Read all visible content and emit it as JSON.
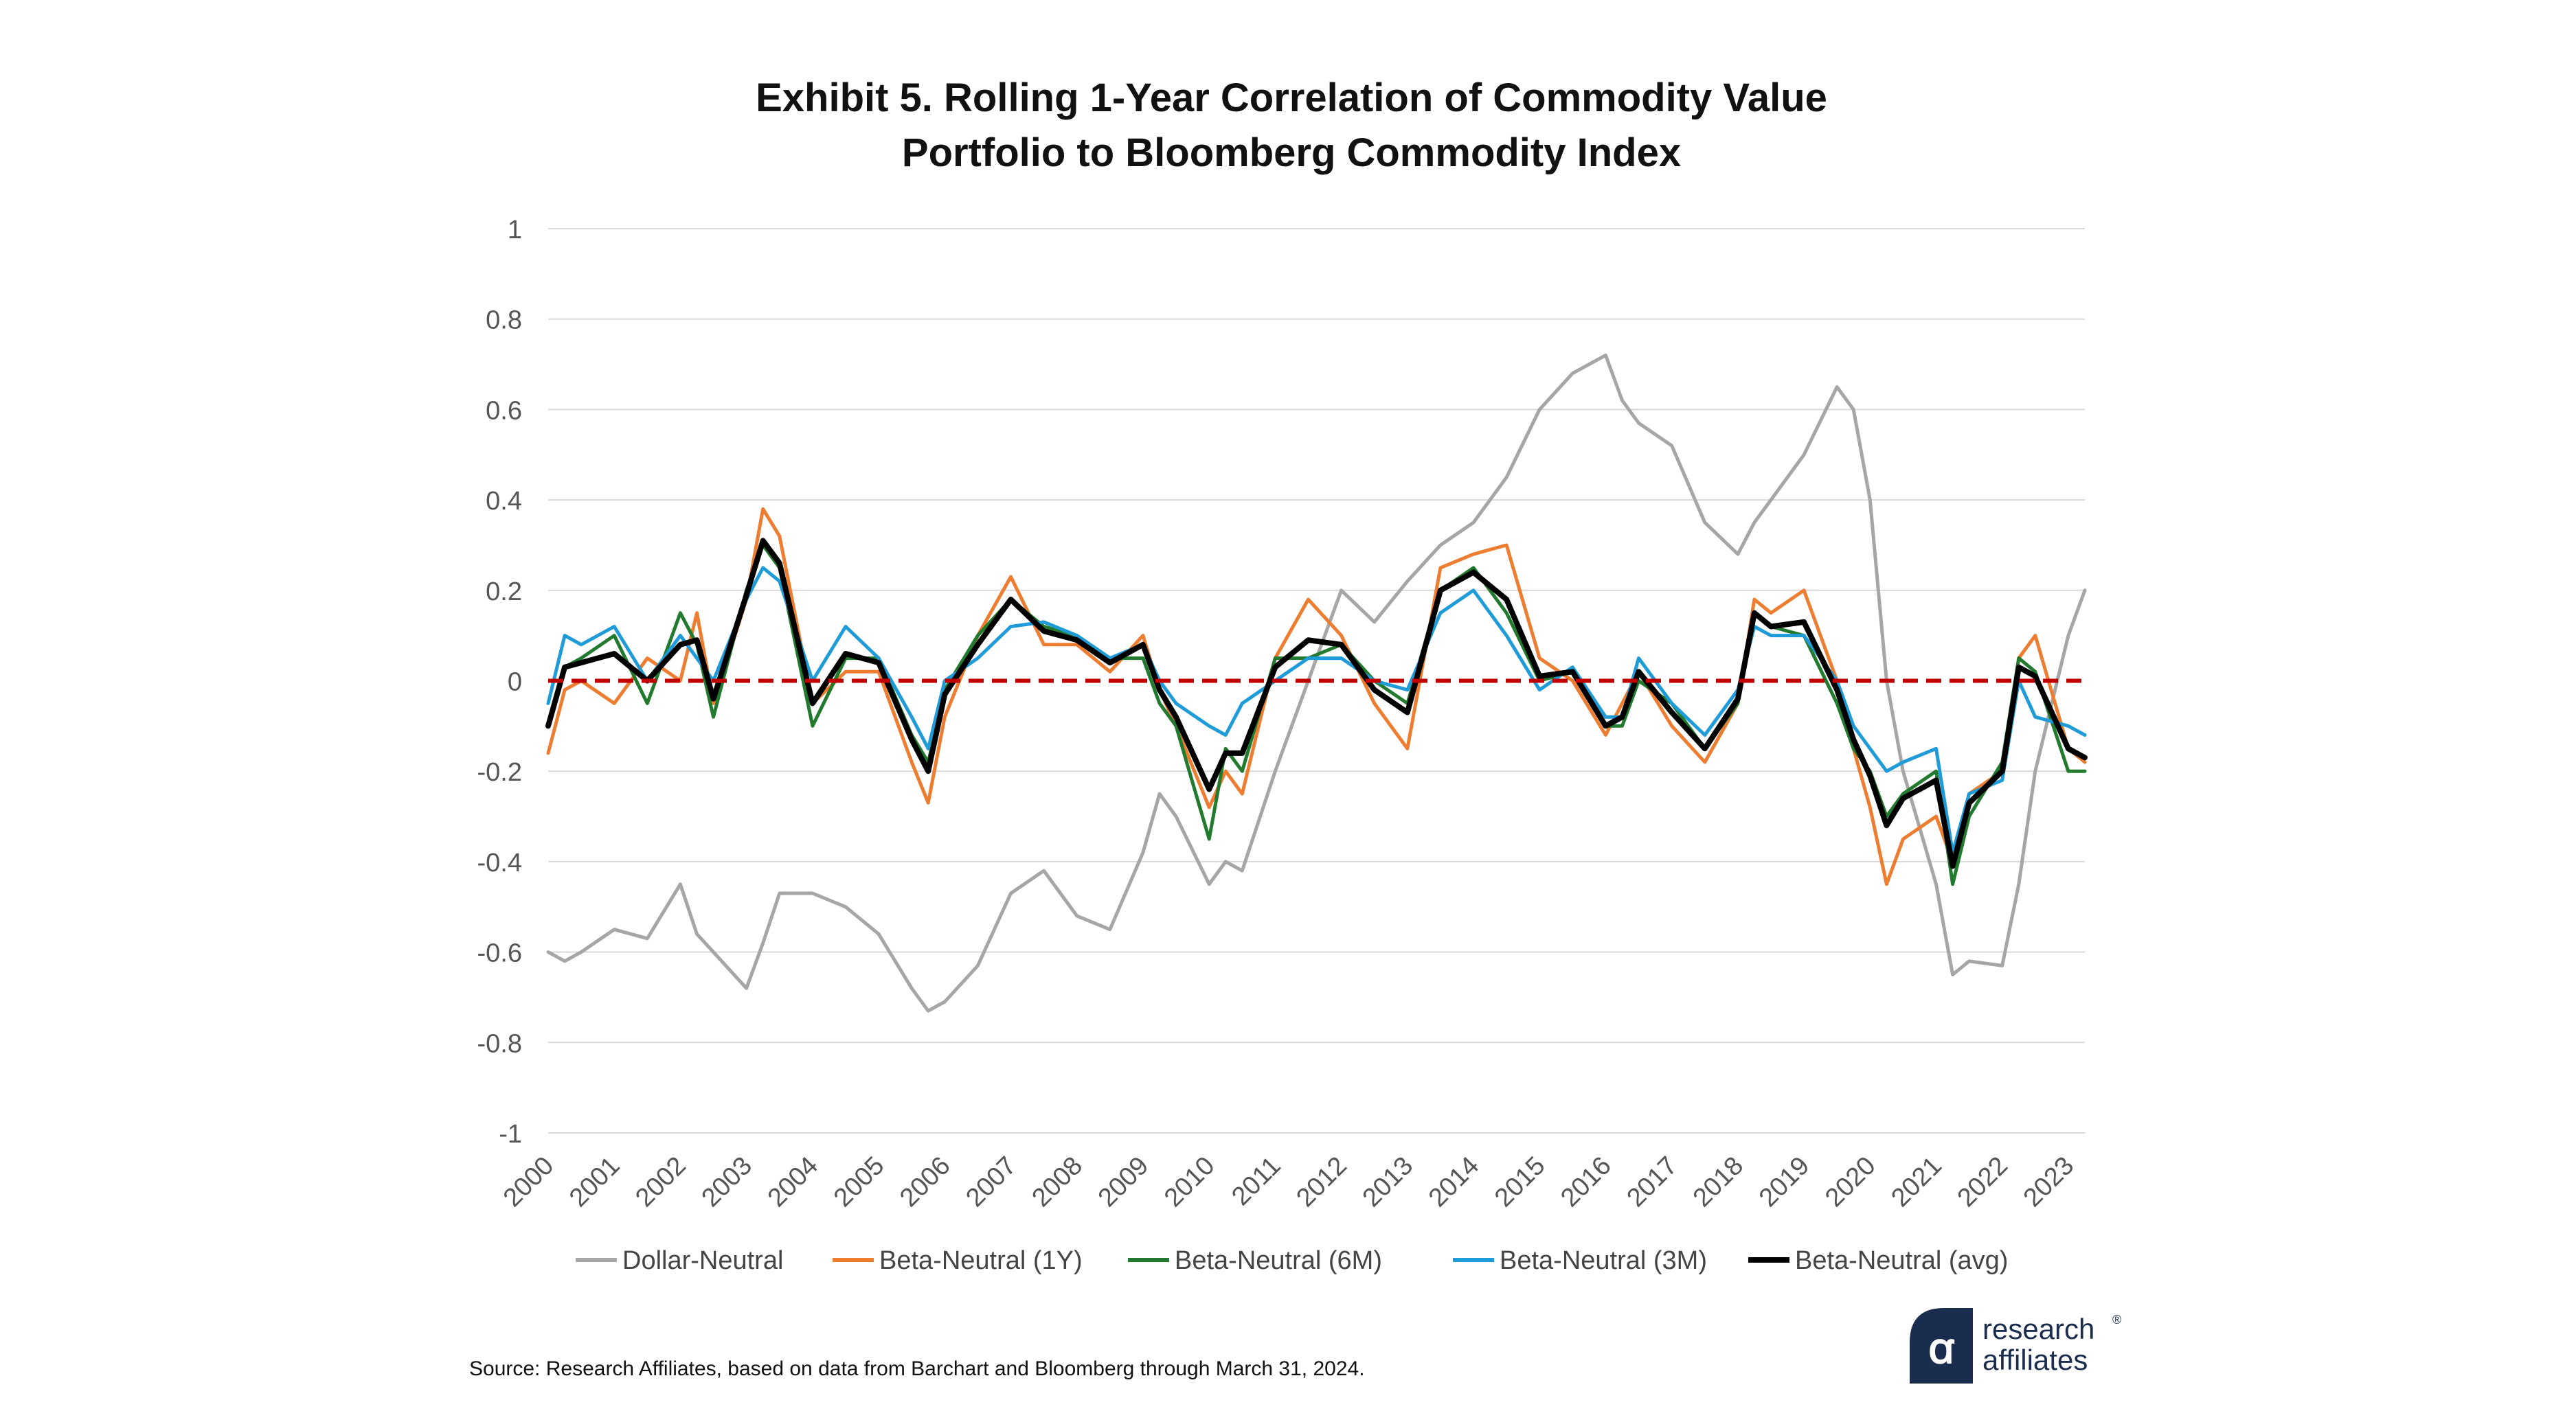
{
  "chart_data": {
    "type": "line",
    "title": "Exhibit 5. Rolling 1-Year Correlation of Commodity Value Portfolio to Bloomberg Commodity Index",
    "title_lines": [
      "Exhibit 5. Rolling 1-Year Correlation of Commodity Value",
      "Portfolio to Bloomberg Commodity Index"
    ],
    "xlabel": "",
    "ylabel": "",
    "x_range": [
      2000,
      2023.25
    ],
    "ylim": [
      -1,
      1
    ],
    "y_ticks": [
      1,
      0.8,
      0.6,
      0.4,
      0.2,
      0,
      -0.2,
      -0.4,
      -0.6,
      -0.8,
      -1
    ],
    "y_tick_labels": [
      "1",
      "0.8",
      "0.6",
      "0.4",
      "0.2",
      "0",
      "-0.2",
      "-0.4",
      "-0.6",
      "-0.8",
      "-1"
    ],
    "x_tick_labels": [
      "2000",
      "2001",
      "2002",
      "2003",
      "2004",
      "2005",
      "2006",
      "2007",
      "2008",
      "2009",
      "2010",
      "2011",
      "2012",
      "2013",
      "2014",
      "2015",
      "2016",
      "2017",
      "2018",
      "2019",
      "2020",
      "2021",
      "2022",
      "2023"
    ],
    "grid": true,
    "legend_position": "bottom",
    "reference_line": {
      "y": 0,
      "color": "#c00000",
      "style": "dashed"
    },
    "series": [
      {
        "name": "Dollar-Neutral",
        "color": "#a6a6a6",
        "x": [
          2000,
          2000.25,
          2000.5,
          2001,
          2001.5,
          2002,
          2002.25,
          2002.5,
          2003,
          2003.25,
          2003.5,
          2004,
          2004.5,
          2005,
          2005.5,
          2005.75,
          2006,
          2006.5,
          2007,
          2007.5,
          2008,
          2008.5,
          2009,
          2009.25,
          2009.5,
          2010,
          2010.25,
          2010.5,
          2011,
          2011.5,
          2012,
          2012.5,
          2013,
          2013.5,
          2014,
          2014.5,
          2015,
          2015.5,
          2016,
          2016.25,
          2016.5,
          2017,
          2017.5,
          2018,
          2018.25,
          2018.5,
          2019,
          2019.5,
          2019.75,
          2020,
          2020.25,
          2020.5,
          2021,
          2021.25,
          2021.5,
          2022,
          2022.25,
          2022.5,
          2023,
          2023.25
        ],
        "values": [
          -0.6,
          -0.62,
          -0.6,
          -0.55,
          -0.57,
          -0.45,
          -0.56,
          -0.6,
          -0.68,
          -0.58,
          -0.47,
          -0.47,
          -0.5,
          -0.56,
          -0.68,
          -0.73,
          -0.71,
          -0.63,
          -0.47,
          -0.42,
          -0.52,
          -0.55,
          -0.38,
          -0.25,
          -0.3,
          -0.45,
          -0.4,
          -0.42,
          -0.2,
          0.0,
          0.2,
          0.13,
          0.22,
          0.3,
          0.35,
          0.45,
          0.6,
          0.68,
          0.72,
          0.62,
          0.57,
          0.52,
          0.35,
          0.28,
          0.35,
          0.4,
          0.5,
          0.65,
          0.6,
          0.4,
          0.0,
          -0.2,
          -0.45,
          -0.65,
          -0.62,
          -0.63,
          -0.45,
          -0.2,
          0.1,
          0.2
        ]
      },
      {
        "name": "Beta-Neutral (1Y)",
        "color": "#ed7d31",
        "x": [
          2000,
          2000.25,
          2000.5,
          2001,
          2001.5,
          2002,
          2002.25,
          2002.5,
          2003,
          2003.25,
          2003.5,
          2004,
          2004.5,
          2005,
          2005.5,
          2005.75,
          2006,
          2006.5,
          2007,
          2007.5,
          2008,
          2008.5,
          2009,
          2009.25,
          2009.5,
          2010,
          2010.25,
          2010.5,
          2011,
          2011.5,
          2012,
          2012.5,
          2013,
          2013.5,
          2014,
          2014.5,
          2015,
          2015.5,
          2016,
          2016.25,
          2016.5,
          2017,
          2017.5,
          2018,
          2018.25,
          2018.5,
          2019,
          2019.5,
          2019.75,
          2020,
          2020.25,
          2020.5,
          2021,
          2021.25,
          2021.5,
          2022,
          2022.25,
          2022.5,
          2023,
          2023.25
        ],
        "values": [
          -0.16,
          -0.02,
          0.0,
          -0.05,
          0.05,
          0.0,
          0.15,
          -0.05,
          0.18,
          0.38,
          0.32,
          -0.05,
          0.02,
          0.02,
          -0.18,
          -0.27,
          -0.08,
          0.1,
          0.23,
          0.08,
          0.08,
          0.02,
          0.1,
          -0.02,
          -0.1,
          -0.28,
          -0.2,
          -0.25,
          0.05,
          0.18,
          0.1,
          -0.05,
          -0.15,
          0.25,
          0.28,
          0.3,
          0.05,
          0.0,
          -0.12,
          -0.05,
          0.02,
          -0.1,
          -0.18,
          -0.05,
          0.18,
          0.15,
          0.2,
          0.0,
          -0.15,
          -0.28,
          -0.45,
          -0.35,
          -0.3,
          -0.4,
          -0.25,
          -0.2,
          0.05,
          0.1,
          -0.15,
          -0.18
        ]
      },
      {
        "name": "Beta-Neutral (6M)",
        "color": "#217a2d",
        "x": [
          2000,
          2000.25,
          2000.5,
          2001,
          2001.5,
          2002,
          2002.25,
          2002.5,
          2003,
          2003.25,
          2003.5,
          2004,
          2004.5,
          2005,
          2005.5,
          2005.75,
          2006,
          2006.5,
          2007,
          2007.5,
          2008,
          2008.5,
          2009,
          2009.25,
          2009.5,
          2010,
          2010.25,
          2010.5,
          2011,
          2011.5,
          2012,
          2012.5,
          2013,
          2013.5,
          2014,
          2014.5,
          2015,
          2015.5,
          2016,
          2016.25,
          2016.5,
          2017,
          2017.5,
          2018,
          2018.25,
          2018.5,
          2019,
          2019.5,
          2019.75,
          2020,
          2020.25,
          2020.5,
          2021,
          2021.25,
          2021.5,
          2022,
          2022.25,
          2022.5,
          2023,
          2023.25
        ],
        "values": [
          -0.1,
          0.03,
          0.05,
          0.1,
          -0.05,
          0.15,
          0.08,
          -0.08,
          0.2,
          0.3,
          0.25,
          -0.1,
          0.05,
          0.05,
          -0.12,
          -0.18,
          -0.02,
          0.1,
          0.18,
          0.12,
          0.1,
          0.05,
          0.05,
          -0.05,
          -0.1,
          -0.35,
          -0.15,
          -0.2,
          0.05,
          0.05,
          0.08,
          0.0,
          -0.05,
          0.2,
          0.25,
          0.15,
          0.0,
          0.02,
          -0.1,
          -0.1,
          0.0,
          -0.05,
          -0.15,
          -0.05,
          0.15,
          0.12,
          0.1,
          -0.05,
          -0.15,
          -0.2,
          -0.3,
          -0.25,
          -0.2,
          -0.45,
          -0.3,
          -0.18,
          0.05,
          0.02,
          -0.2,
          -0.2
        ]
      },
      {
        "name": "Beta-Neutral (3M)",
        "color": "#1f9bd7",
        "x": [
          2000,
          2000.25,
          2000.5,
          2001,
          2001.5,
          2002,
          2002.25,
          2002.5,
          2003,
          2003.25,
          2003.5,
          2004,
          2004.5,
          2005,
          2005.5,
          2005.75,
          2006,
          2006.5,
          2007,
          2007.5,
          2008,
          2008.5,
          2009,
          2009.25,
          2009.5,
          2010,
          2010.25,
          2010.5,
          2011,
          2011.5,
          2012,
          2012.5,
          2013,
          2013.5,
          2014,
          2014.5,
          2015,
          2015.5,
          2016,
          2016.25,
          2016.5,
          2017,
          2017.5,
          2018,
          2018.25,
          2018.5,
          2019,
          2019.5,
          2019.75,
          2020,
          2020.25,
          2020.5,
          2021,
          2021.25,
          2021.5,
          2022,
          2022.25,
          2022.5,
          2023,
          2023.25
        ],
        "values": [
          -0.05,
          0.1,
          0.08,
          0.12,
          0.0,
          0.1,
          0.05,
          0.0,
          0.18,
          0.25,
          0.22,
          0.0,
          0.12,
          0.05,
          -0.08,
          -0.15,
          0.0,
          0.05,
          0.12,
          0.13,
          0.1,
          0.05,
          0.08,
          0.0,
          -0.05,
          -0.1,
          -0.12,
          -0.05,
          0.0,
          0.05,
          0.05,
          0.0,
          -0.02,
          0.15,
          0.2,
          0.1,
          -0.02,
          0.03,
          -0.08,
          -0.08,
          0.05,
          -0.05,
          -0.12,
          -0.02,
          0.12,
          0.1,
          0.1,
          0.0,
          -0.1,
          -0.15,
          -0.2,
          -0.18,
          -0.15,
          -0.38,
          -0.25,
          -0.22,
          0.0,
          -0.08,
          -0.1,
          -0.12
        ]
      },
      {
        "name": "Beta-Neutral (avg)",
        "color": "#000000",
        "x": [
          2000,
          2000.25,
          2000.5,
          2001,
          2001.5,
          2002,
          2002.25,
          2002.5,
          2003,
          2003.25,
          2003.5,
          2004,
          2004.5,
          2005,
          2005.5,
          2005.75,
          2006,
          2006.5,
          2007,
          2007.5,
          2008,
          2008.5,
          2009,
          2009.25,
          2009.5,
          2010,
          2010.25,
          2010.5,
          2011,
          2011.5,
          2012,
          2012.5,
          2013,
          2013.5,
          2014,
          2014.5,
          2015,
          2015.5,
          2016,
          2016.25,
          2016.5,
          2017,
          2017.5,
          2018,
          2018.25,
          2018.5,
          2019,
          2019.5,
          2019.75,
          2020,
          2020.25,
          2020.5,
          2021,
          2021.25,
          2021.5,
          2022,
          2022.25,
          2022.5,
          2023,
          2023.25
        ],
        "values": [
          -0.1,
          0.03,
          0.04,
          0.06,
          0.0,
          0.08,
          0.09,
          -0.04,
          0.19,
          0.31,
          0.26,
          -0.05,
          0.06,
          0.04,
          -0.13,
          -0.2,
          -0.03,
          0.08,
          0.18,
          0.11,
          0.09,
          0.04,
          0.08,
          -0.02,
          -0.08,
          -0.24,
          -0.16,
          -0.16,
          0.03,
          0.09,
          0.08,
          -0.02,
          -0.07,
          0.2,
          0.24,
          0.18,
          0.01,
          0.02,
          -0.1,
          -0.08,
          0.02,
          -0.07,
          -0.15,
          -0.04,
          0.15,
          0.12,
          0.13,
          -0.02,
          -0.13,
          -0.21,
          -0.32,
          -0.26,
          -0.22,
          -0.41,
          -0.27,
          -0.2,
          0.03,
          0.01,
          -0.15,
          -0.17
        ]
      }
    ]
  },
  "source_text": "Source: Research Affiliates, based on data from Barchart and Bloomberg through March 31, 2024.",
  "logo": {
    "line1": "research",
    "line2": "affiliates",
    "registered": "®",
    "glyph": "ꭤ"
  }
}
